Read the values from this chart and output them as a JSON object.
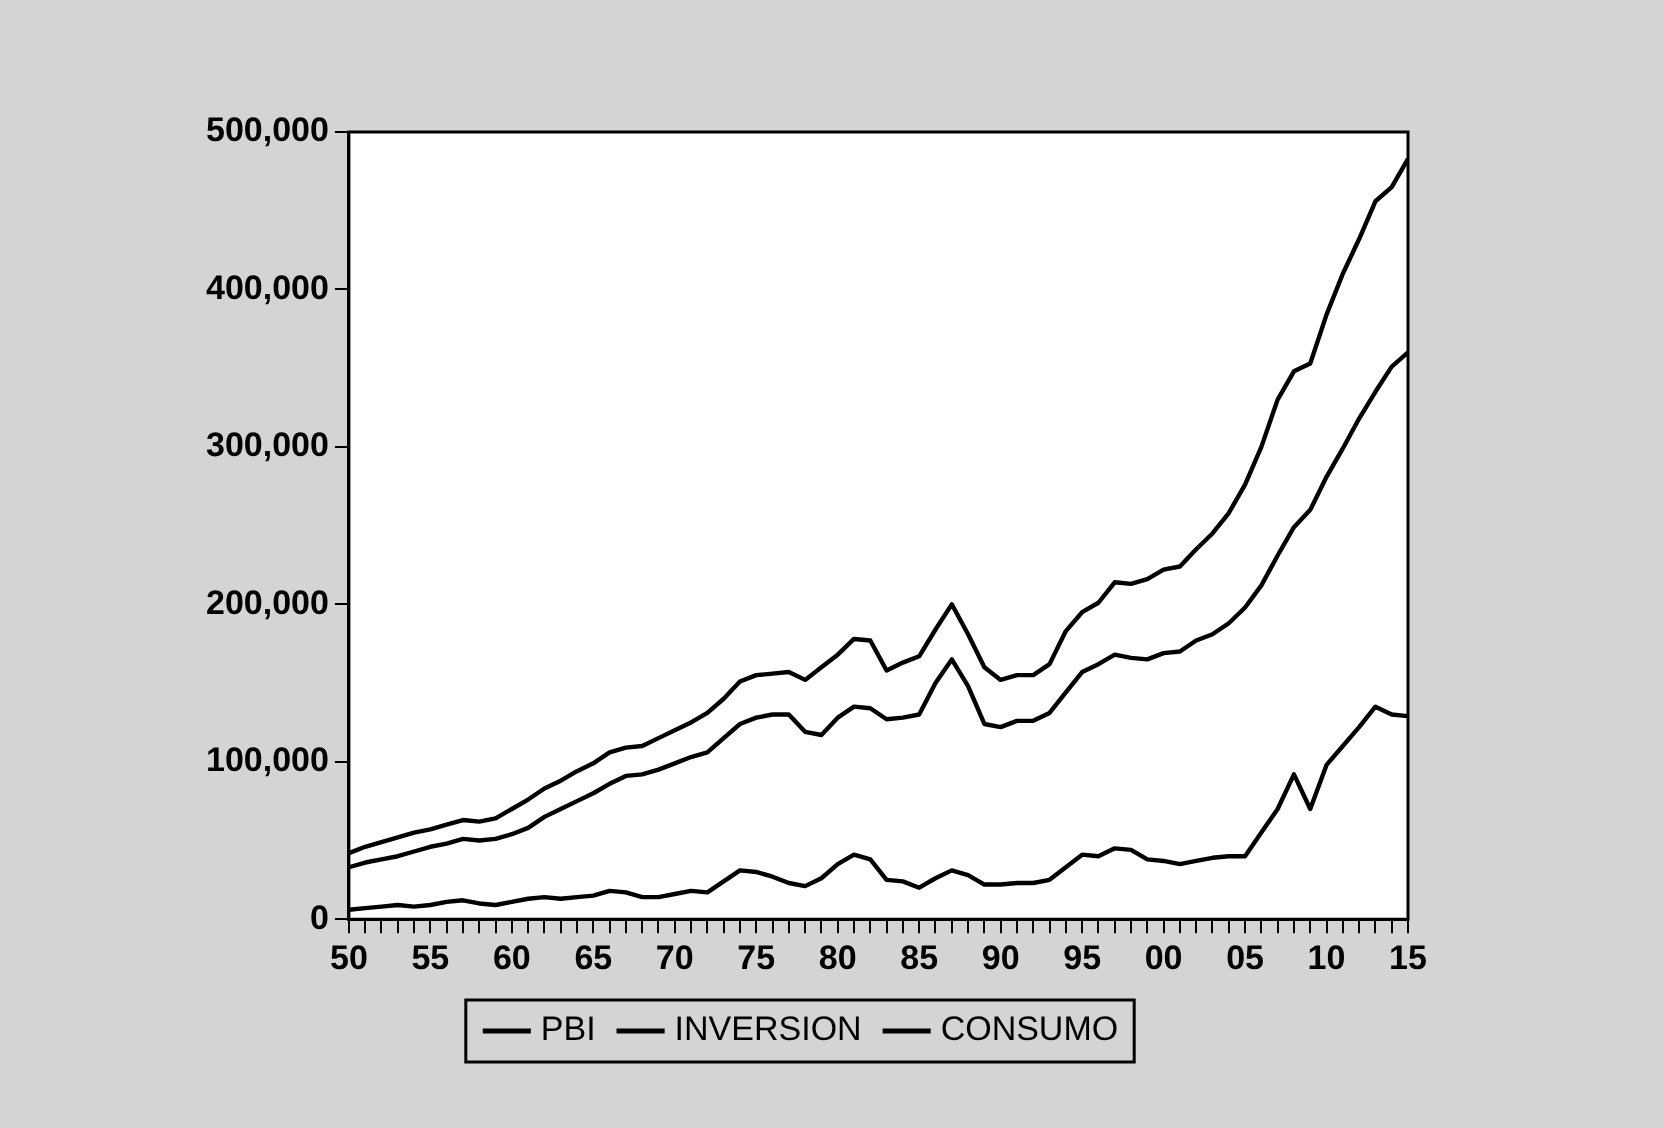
{
  "chart_data": {
    "type": "line",
    "x": [
      1950,
      1951,
      1952,
      1953,
      1954,
      1955,
      1956,
      1957,
      1958,
      1959,
      1960,
      1961,
      1962,
      1963,
      1964,
      1965,
      1966,
      1967,
      1968,
      1969,
      1970,
      1971,
      1972,
      1973,
      1974,
      1975,
      1976,
      1977,
      1978,
      1979,
      1980,
      1981,
      1982,
      1983,
      1984,
      1985,
      1986,
      1987,
      1988,
      1989,
      1990,
      1991,
      1992,
      1993,
      1994,
      1995,
      1996,
      1997,
      1998,
      1999,
      2000,
      2001,
      2002,
      2003,
      2004,
      2005,
      2006,
      2007,
      2008,
      2009,
      2010,
      2011,
      2012,
      2013,
      2014,
      2015
    ],
    "series": [
      {
        "name": "PBI",
        "color": "#000000",
        "values": [
          42000,
          46000,
          49000,
          52000,
          55000,
          57000,
          60000,
          63000,
          62000,
          64000,
          70000,
          76000,
          83000,
          88000,
          94000,
          99000,
          106000,
          109000,
          110000,
          115000,
          120000,
          125000,
          131000,
          140000,
          151000,
          155000,
          156000,
          157000,
          152000,
          160000,
          168000,
          178000,
          177000,
          158000,
          163000,
          167000,
          184000,
          200000,
          181000,
          160000,
          152000,
          155000,
          155000,
          162000,
          183000,
          195000,
          201000,
          214000,
          213000,
          216000,
          222000,
          224000,
          235000,
          245000,
          258000,
          276000,
          300000,
          330000,
          348000,
          353000,
          384000,
          410000,
          432000,
          456000,
          465000,
          483000
        ]
      },
      {
        "name": "INVERSION",
        "color": "#000000",
        "values": [
          6000,
          7000,
          8000,
          9000,
          8000,
          9000,
          11000,
          12000,
          10000,
          9000,
          11000,
          13000,
          14000,
          13000,
          14000,
          15000,
          18000,
          17000,
          14000,
          14000,
          16000,
          18000,
          17000,
          24000,
          31000,
          30000,
          27000,
          23000,
          21000,
          26000,
          35000,
          41000,
          38000,
          25000,
          24000,
          20000,
          26000,
          31000,
          28000,
          22000,
          22000,
          23000,
          23000,
          25000,
          33000,
          41000,
          40000,
          45000,
          44000,
          38000,
          37000,
          35000,
          37000,
          39000,
          40000,
          40000,
          55000,
          70000,
          92000,
          70000,
          98000,
          110000,
          122000,
          135000,
          130000,
          129000
        ]
      },
      {
        "name": "CONSUMO",
        "color": "#000000",
        "values": [
          33000,
          36000,
          38000,
          40000,
          43000,
          46000,
          48000,
          51000,
          50000,
          51000,
          54000,
          58000,
          65000,
          70000,
          75000,
          80000,
          86000,
          91000,
          92000,
          95000,
          99000,
          103000,
          106000,
          115000,
          124000,
          128000,
          130000,
          130000,
          119000,
          117000,
          128000,
          135000,
          134000,
          127000,
          128000,
          130000,
          150000,
          165000,
          148000,
          124000,
          122000,
          126000,
          126000,
          131000,
          144000,
          157000,
          162000,
          168000,
          166000,
          165000,
          169000,
          170000,
          177000,
          181000,
          188000,
          198000,
          212000,
          231000,
          249000,
          260000,
          281000,
          299000,
          318000,
          335000,
          351000,
          360000
        ]
      }
    ],
    "xlim": [
      1950,
      2015
    ],
    "xticks": [
      {
        "value": 1950,
        "label": "50"
      },
      {
        "value": 1951,
        "label": null
      },
      {
        "value": 1952,
        "label": null
      },
      {
        "value": 1953,
        "label": null
      },
      {
        "value": 1954,
        "label": null
      },
      {
        "value": 1955,
        "label": "55"
      },
      {
        "value": 1956,
        "label": null
      },
      {
        "value": 1957,
        "label": null
      },
      {
        "value": 1958,
        "label": null
      },
      {
        "value": 1959,
        "label": null
      },
      {
        "value": 1960,
        "label": "60"
      },
      {
        "value": 1961,
        "label": null
      },
      {
        "value": 1962,
        "label": null
      },
      {
        "value": 1963,
        "label": null
      },
      {
        "value": 1964,
        "label": null
      },
      {
        "value": 1965,
        "label": "65"
      },
      {
        "value": 1966,
        "label": null
      },
      {
        "value": 1967,
        "label": null
      },
      {
        "value": 1968,
        "label": null
      },
      {
        "value": 1969,
        "label": null
      },
      {
        "value": 1970,
        "label": "70"
      },
      {
        "value": 1971,
        "label": null
      },
      {
        "value": 1972,
        "label": null
      },
      {
        "value": 1973,
        "label": null
      },
      {
        "value": 1974,
        "label": null
      },
      {
        "value": 1975,
        "label": "75"
      },
      {
        "value": 1976,
        "label": null
      },
      {
        "value": 1977,
        "label": null
      },
      {
        "value": 1978,
        "label": null
      },
      {
        "value": 1979,
        "label": null
      },
      {
        "value": 1980,
        "label": "80"
      },
      {
        "value": 1981,
        "label": null
      },
      {
        "value": 1982,
        "label": null
      },
      {
        "value": 1983,
        "label": null
      },
      {
        "value": 1984,
        "label": null
      },
      {
        "value": 1985,
        "label": "85"
      },
      {
        "value": 1986,
        "label": null
      },
      {
        "value": 1987,
        "label": null
      },
      {
        "value": 1988,
        "label": null
      },
      {
        "value": 1989,
        "label": null
      },
      {
        "value": 1990,
        "label": "90"
      },
      {
        "value": 1991,
        "label": null
      },
      {
        "value": 1992,
        "label": null
      },
      {
        "value": 1993,
        "label": null
      },
      {
        "value": 1994,
        "label": null
      },
      {
        "value": 1995,
        "label": "95"
      },
      {
        "value": 1996,
        "label": null
      },
      {
        "value": 1997,
        "label": null
      },
      {
        "value": 1998,
        "label": null
      },
      {
        "value": 1999,
        "label": null
      },
      {
        "value": 2000,
        "label": "00"
      },
      {
        "value": 2001,
        "label": null
      },
      {
        "value": 2002,
        "label": null
      },
      {
        "value": 2003,
        "label": null
      },
      {
        "value": 2004,
        "label": null
      },
      {
        "value": 2005,
        "label": "05"
      },
      {
        "value": 2006,
        "label": null
      },
      {
        "value": 2007,
        "label": null
      },
      {
        "value": 2008,
        "label": null
      },
      {
        "value": 2009,
        "label": null
      },
      {
        "value": 2010,
        "label": "10"
      },
      {
        "value": 2011,
        "label": null
      },
      {
        "value": 2012,
        "label": null
      },
      {
        "value": 2013,
        "label": null
      },
      {
        "value": 2014,
        "label": null
      },
      {
        "value": 2015,
        "label": "15"
      }
    ],
    "ylim": [
      0,
      500000
    ],
    "yticks": [
      {
        "value": 0,
        "label": "0"
      },
      {
        "value": 100000,
        "label": "100,000"
      },
      {
        "value": 200000,
        "label": "200,000"
      },
      {
        "value": 300000,
        "label": "300,000"
      },
      {
        "value": 400000,
        "label": "400,000"
      },
      {
        "value": 500000,
        "label": "500,000"
      }
    ],
    "grid": false,
    "legend": "bottom",
    "marker": "none",
    "line_style": "solid"
  }
}
